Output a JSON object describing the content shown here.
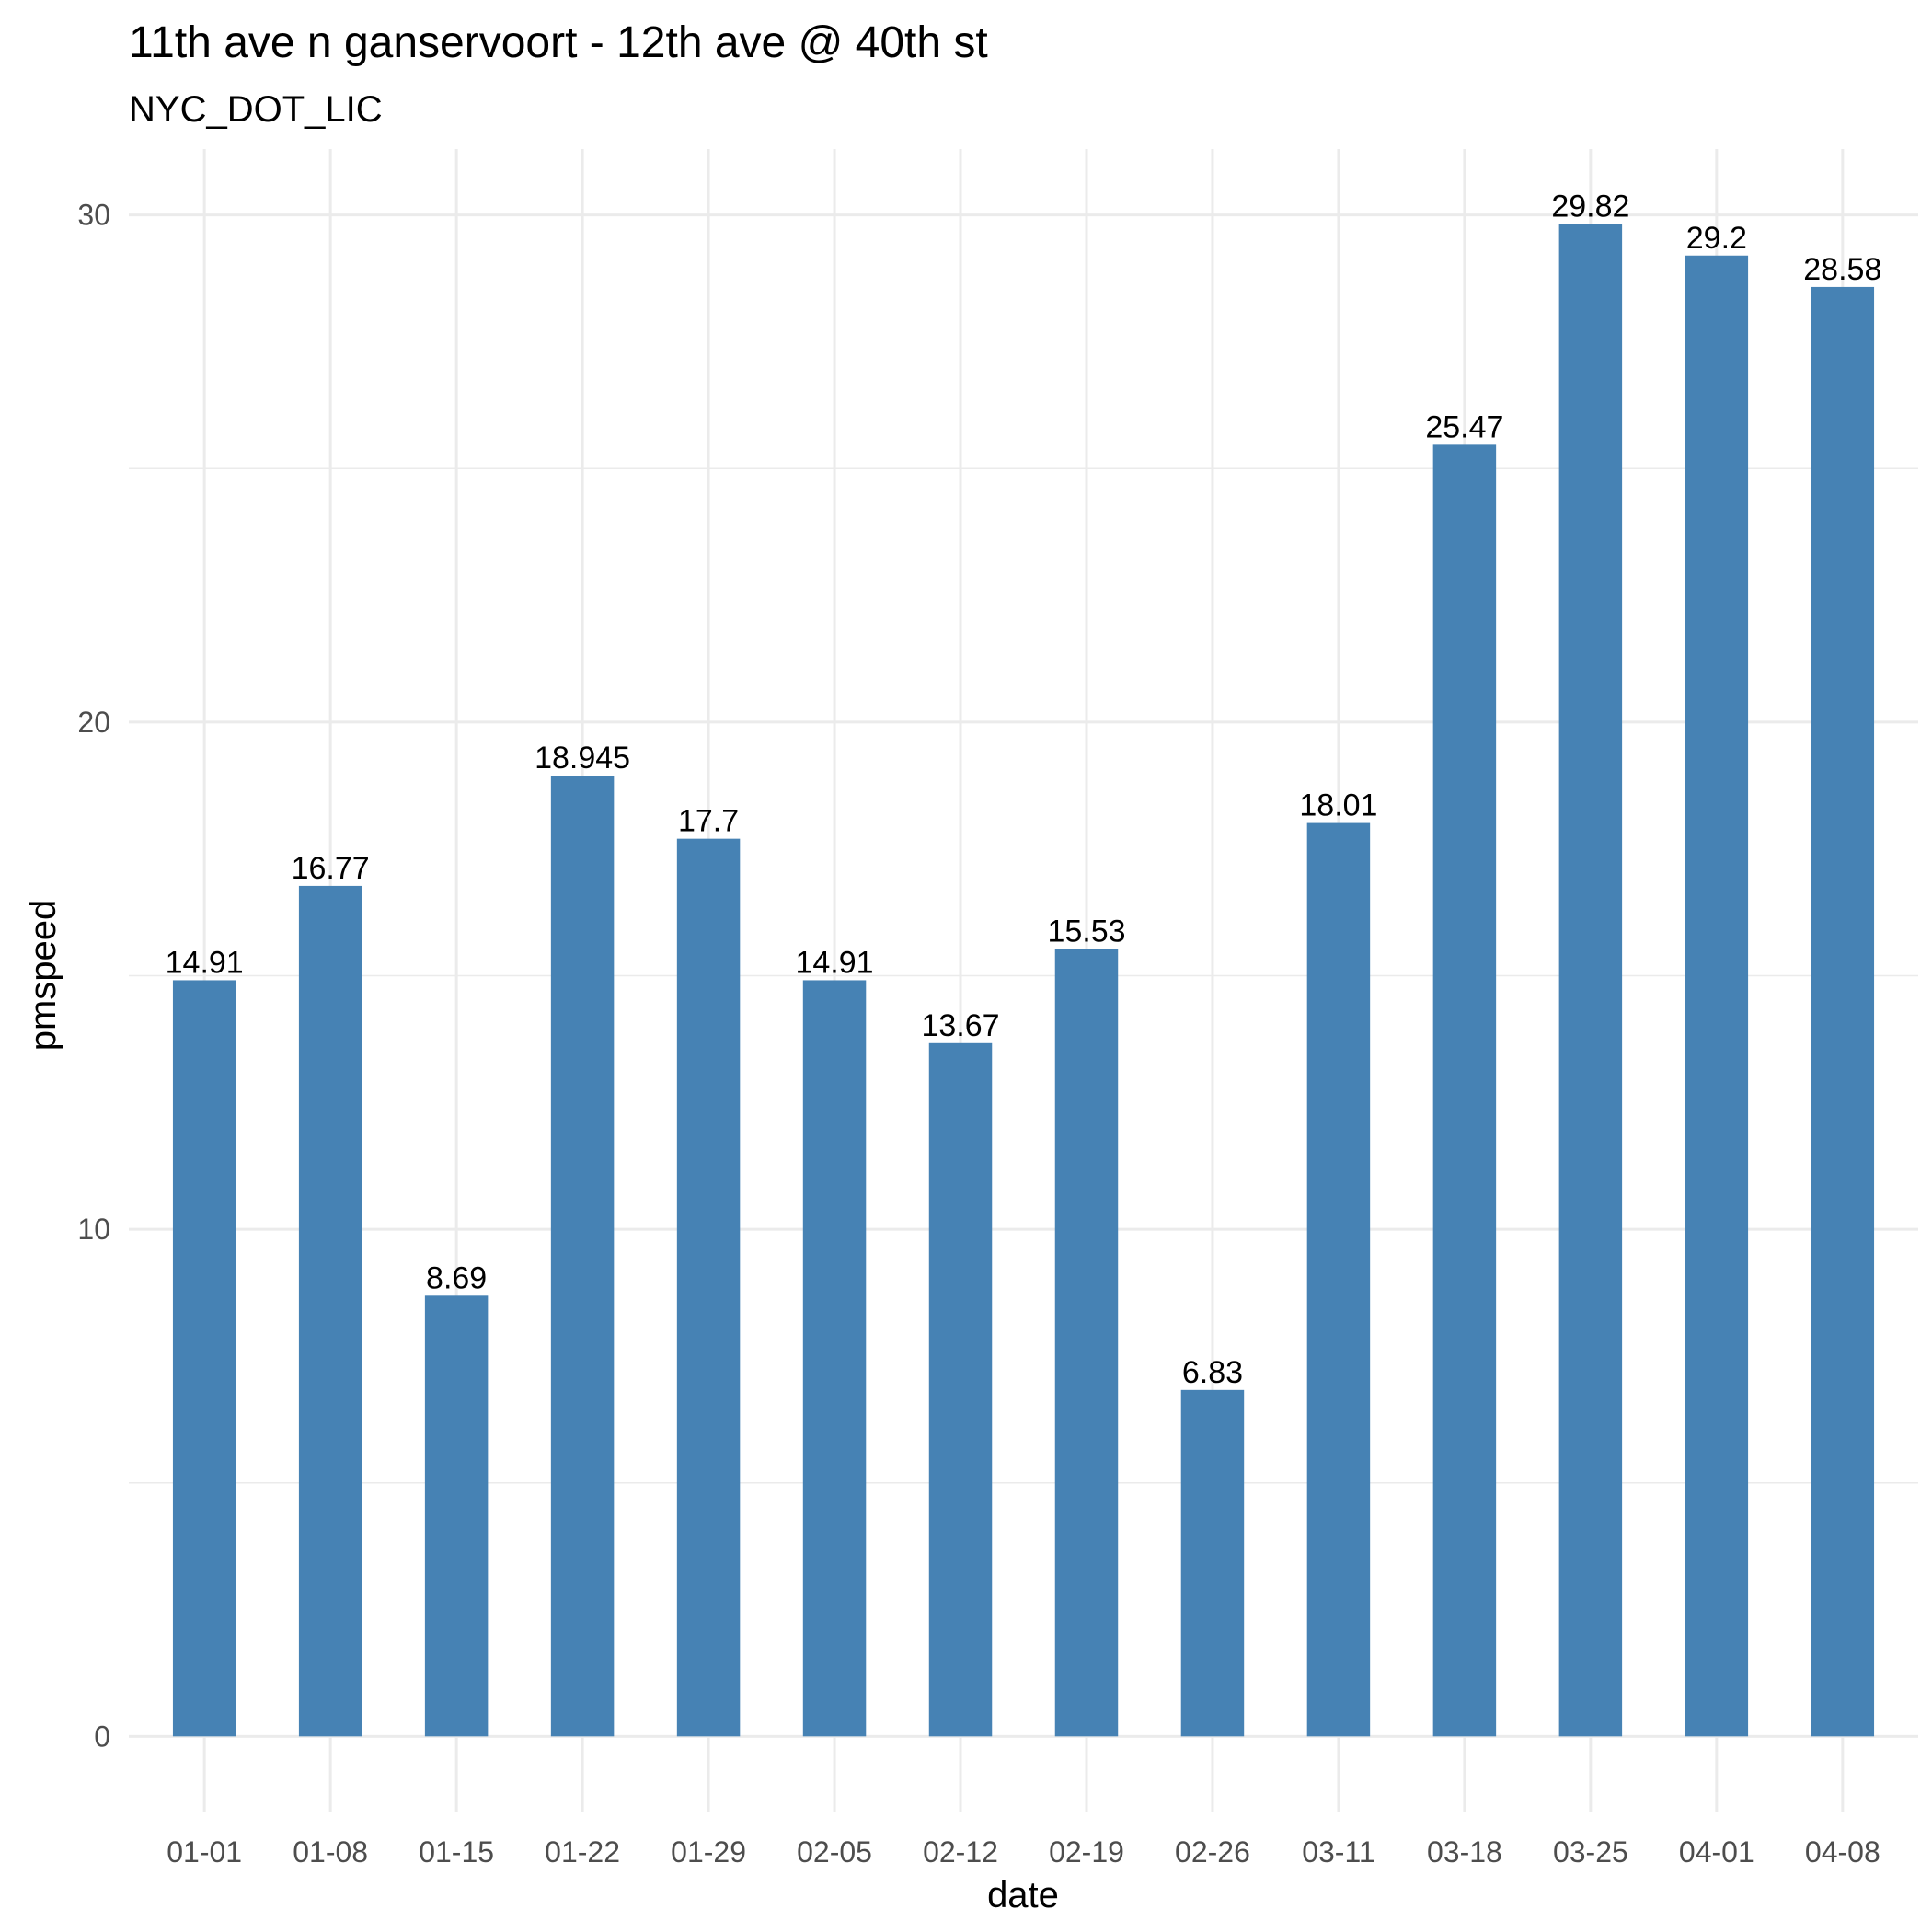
{
  "chart_data": {
    "type": "bar",
    "title": "11th ave n ganservoort - 12th ave @ 40th st",
    "subtitle": "NYC_DOT_LIC",
    "xlabel": "date",
    "ylabel": "pmspeed",
    "categories": [
      "01-01",
      "01-08",
      "01-15",
      "01-22",
      "01-29",
      "02-05",
      "02-12",
      "02-19",
      "02-26",
      "03-11",
      "03-18",
      "03-25",
      "04-01",
      "04-08"
    ],
    "values": [
      14.91,
      16.77,
      8.69,
      18.945,
      17.7,
      14.91,
      13.67,
      15.53,
      6.83,
      18.01,
      25.47,
      29.82,
      29.2,
      28.58
    ],
    "data_labels": [
      "14.91",
      "16.77",
      "8.69",
      "18.945",
      "17.7",
      "14.91",
      "13.67",
      "15.53",
      "6.83",
      "18.01",
      "25.47",
      "29.82",
      "29.2",
      "28.58"
    ],
    "y_ticks": [
      0,
      10,
      20,
      30
    ],
    "y_tick_labels": [
      "0",
      "10",
      "20",
      "30"
    ],
    "ylim": [
      -1.5,
      31.3
    ],
    "grid": true,
    "legend": "none",
    "bar_color": "#4682b4"
  }
}
